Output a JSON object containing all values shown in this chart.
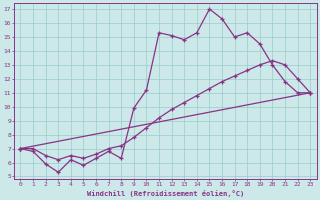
{
  "xlabel": "Windchill (Refroidissement éolien,°C)",
  "bg_color": "#cce8e8",
  "line_color": "#883388",
  "grid_color": "#99cccc",
  "xlim": [
    -0.5,
    23.5
  ],
  "ylim": [
    4.8,
    17.4
  ],
  "yticks": [
    5,
    6,
    7,
    8,
    9,
    10,
    11,
    12,
    13,
    14,
    15,
    16,
    17
  ],
  "xticks": [
    0,
    1,
    2,
    3,
    4,
    5,
    6,
    7,
    8,
    9,
    10,
    11,
    12,
    13,
    14,
    15,
    16,
    17,
    18,
    19,
    20,
    21,
    22,
    23
  ],
  "line1_x": [
    0,
    1,
    2,
    3,
    4,
    5,
    6,
    7,
    8,
    9,
    10,
    11,
    12,
    13,
    14,
    15,
    16,
    17,
    18,
    19,
    20,
    21,
    22,
    23
  ],
  "line1_y": [
    7.0,
    6.8,
    5.9,
    5.3,
    6.2,
    5.8,
    6.3,
    6.8,
    6.3,
    9.9,
    11.2,
    15.3,
    15.1,
    14.8,
    15.3,
    17.0,
    16.3,
    15.0,
    15.3,
    14.5,
    13.0,
    11.8,
    11.0,
    11.0
  ],
  "line2_x": [
    0,
    23
  ],
  "line2_y": [
    7.0,
    11.0
  ],
  "line3_x": [
    0,
    1,
    2,
    3,
    4,
    5,
    6,
    7,
    8,
    9,
    10,
    11,
    12,
    13,
    14,
    15,
    16,
    17,
    18,
    19,
    20,
    21,
    22,
    23
  ],
  "line3_y": [
    7.0,
    7.0,
    6.5,
    6.2,
    6.5,
    6.3,
    6.6,
    7.0,
    7.2,
    7.8,
    8.5,
    9.2,
    9.8,
    10.3,
    10.8,
    11.3,
    11.8,
    12.2,
    12.6,
    13.0,
    13.3,
    13.0,
    12.0,
    11.0
  ]
}
